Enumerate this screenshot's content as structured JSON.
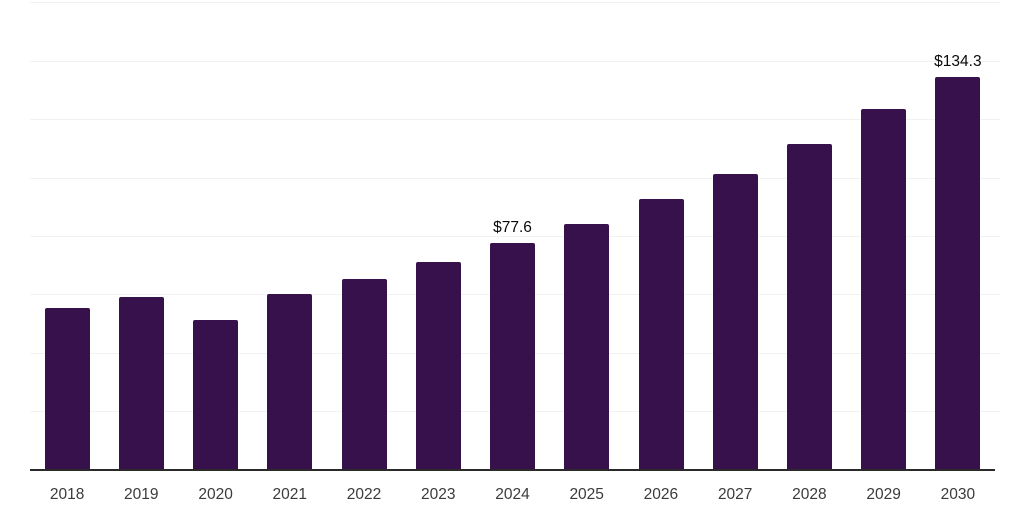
{
  "chart_data": {
    "type": "bar",
    "title": "",
    "xlabel": "",
    "ylabel": "",
    "categories": [
      "2018",
      "2019",
      "2020",
      "2021",
      "2022",
      "2023",
      "2024",
      "2025",
      "2026",
      "2027",
      "2028",
      "2029",
      "2030"
    ],
    "values": [
      55.4,
      59.2,
      51.3,
      60.0,
      65.4,
      71.1,
      77.6,
      84.1,
      92.5,
      101.3,
      111.5,
      123.4,
      134.3
    ],
    "value_prefix": "$",
    "data_labels": [
      {
        "category": "2024",
        "text": "$77.6"
      },
      {
        "category": "2030",
        "text": "$134.3"
      }
    ],
    "ylim": [
      0,
      160
    ],
    "grid_step": 20,
    "grid": "horizontal",
    "y_axis_tick_labels_visible": false,
    "legend": "none",
    "colors": {
      "bar": "#36114c",
      "axis_line": "#2a2a2a",
      "gridline": "#f2f2f2",
      "tick_label": "#3b3b3b",
      "data_label": "#0a0a0a",
      "background": "#ffffff"
    }
  }
}
